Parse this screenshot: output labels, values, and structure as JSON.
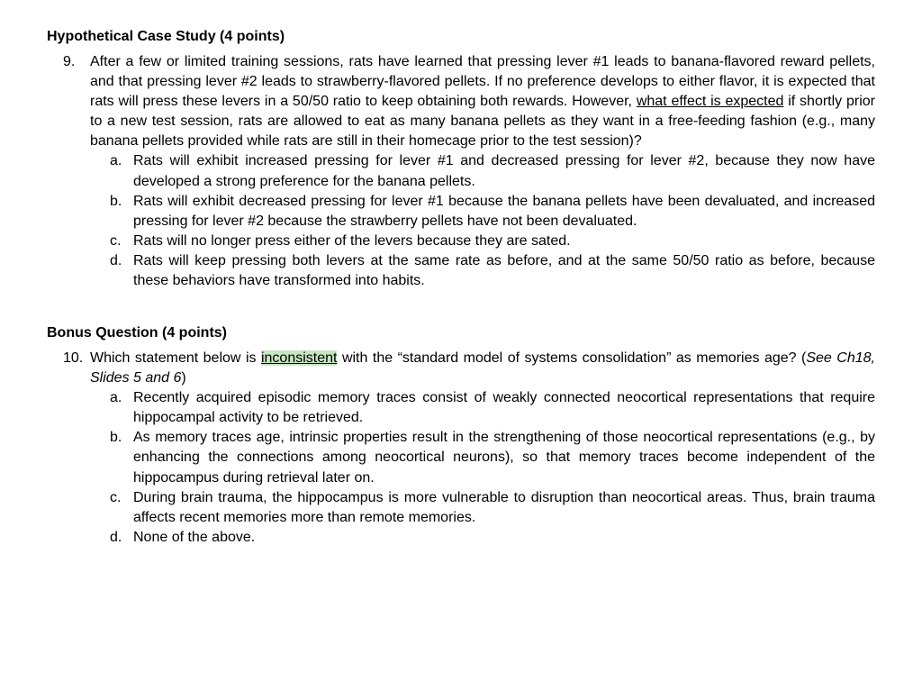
{
  "section1": {
    "heading": "Hypothetical Case Study (4 points)",
    "q_number": "9.",
    "q_text_pre": "After a few or limited training sessions, rats have learned that pressing lever #1 leads to banana-flavored reward pellets, and that pressing lever #2 leads to strawberry-flavored pellets. If no preference develops to either flavor, it is expected that rats will press these levers in a 50/50 ratio to keep obtaining both rewards. However, ",
    "q_text_ul": "what effect is expected",
    "q_text_post": " if shortly prior to a new test session, rats are allowed to eat as many banana pellets as they want in a free-feeding fashion (e.g., many banana pellets provided while rats are still in their homecage prior to the test session)?",
    "opts": {
      "a_letter": "a.",
      "a": "Rats will exhibit increased pressing for lever #1 and decreased pressing for lever #2, because they now have developed a strong preference for the banana pellets.",
      "b_letter": "b.",
      "b": "Rats will exhibit decreased pressing for lever #1 because the banana pellets have been devaluated, and increased pressing for lever #2 because the strawberry pellets have not been devaluated.",
      "c_letter": "c.",
      "c": "Rats will no longer press either of the levers because they are sated.",
      "d_letter": "d.",
      "d": "Rats will keep pressing both levers at the same rate as before, and at the same 50/50 ratio as before, because these behaviors have transformed into habits."
    }
  },
  "section2": {
    "heading": "Bonus Question (4 points)",
    "q_number": "10.",
    "q_text_pre": "Which statement below is ",
    "q_text_hl": "inconsistent",
    "q_text_mid": " with the “standard model of systems consolidation” as memories age? (",
    "q_text_ital": "See Ch18, Slides 5 and 6",
    "q_text_post": ")",
    "opts": {
      "a_letter": "a.",
      "a": "Recently acquired episodic memory traces consist of weakly connected neocortical representations that require hippocampal activity to be retrieved.",
      "b_letter": "b.",
      "b": "As memory traces age, intrinsic properties result in the strengthening of those neocortical representations (e.g., by enhancing the connections among neocortical neurons), so that memory traces become independent of the hippocampus during retrieval later on.",
      "c_letter": "c.",
      "c": "During brain trauma, the hippocampus is more vulnerable to disruption than neocortical areas. Thus, brain trauma affects recent memories more than remote memories.",
      "d_letter": "d.",
      "d": "None of the above."
    }
  }
}
